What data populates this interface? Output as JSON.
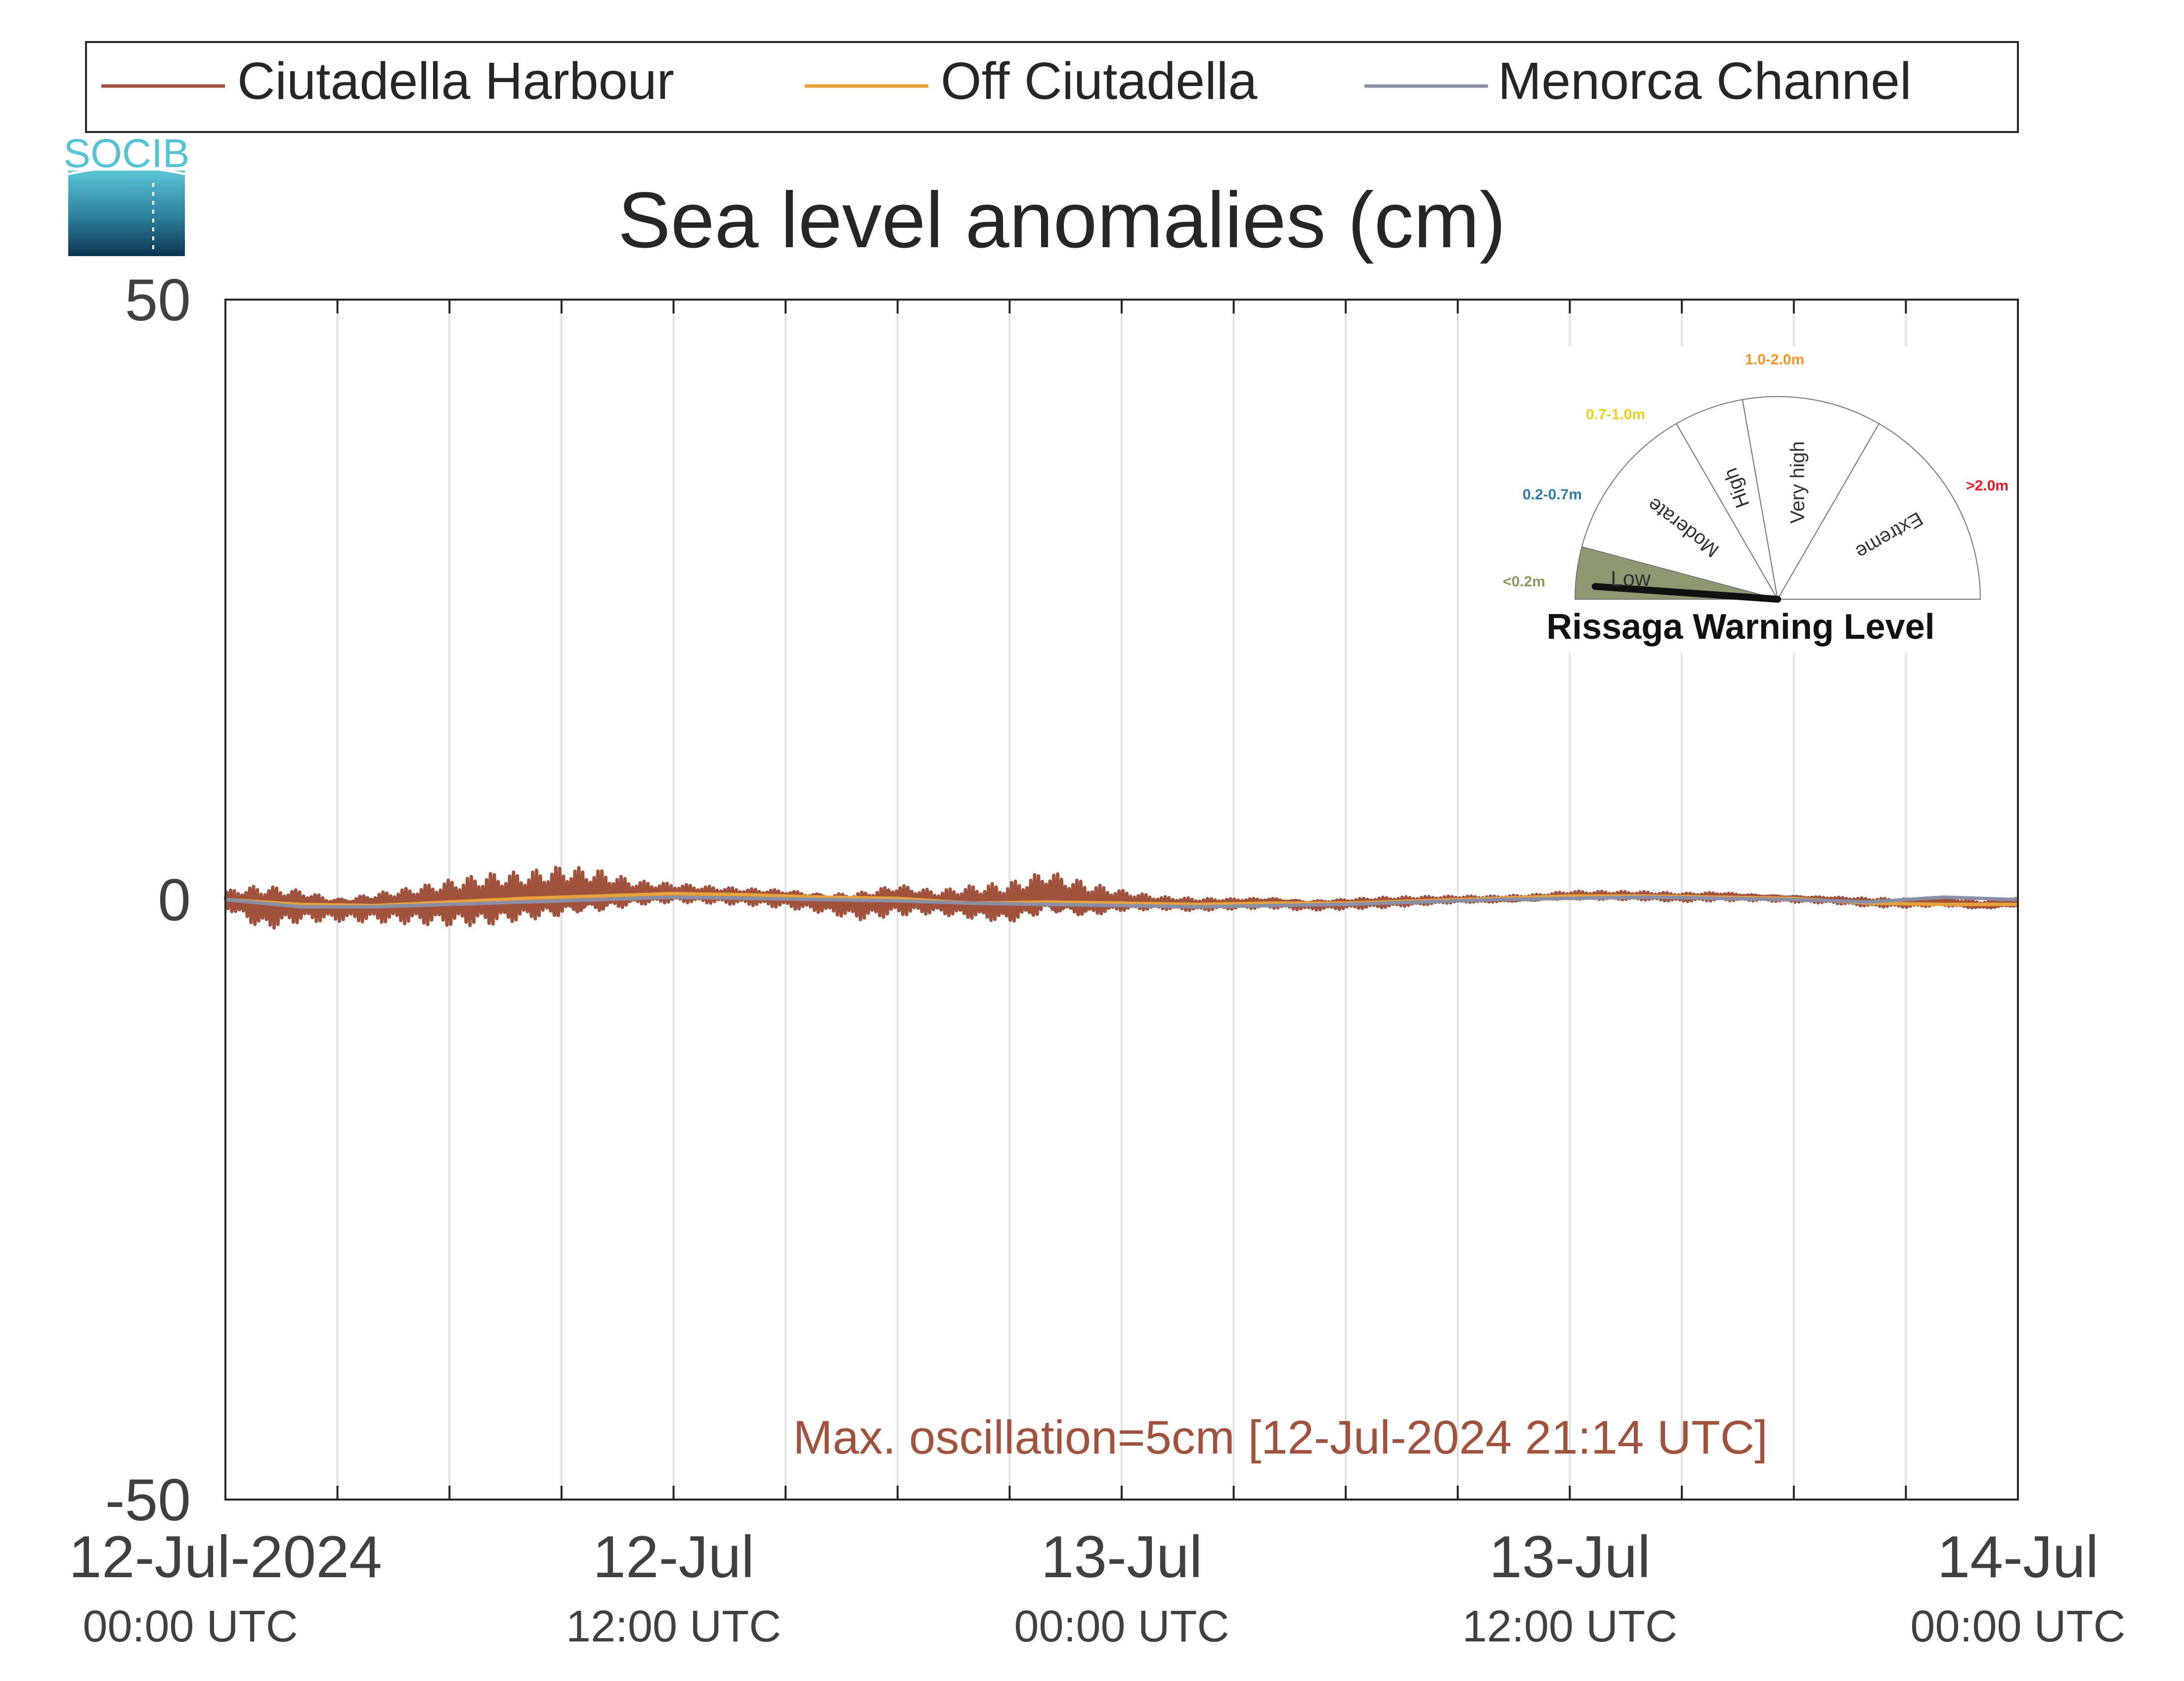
{
  "chart_data": {
    "type": "line",
    "title": "Sea level anomalies (cm)",
    "xlabel": "",
    "ylabel": "",
    "ylim": [
      -50,
      50
    ],
    "yticks": [
      50,
      0,
      -50
    ],
    "ytick_labels": [
      "50",
      "0",
      "-50"
    ],
    "xlim": [
      "2024-07-12 00:00",
      "2024-07-14 00:00"
    ],
    "xticks": [
      {
        "date": "2024-07-12 00:00",
        "line1": "12-Jul-2024",
        "line2": "00:00 UTC"
      },
      {
        "date": "2024-07-12 12:00",
        "line1": "12-Jul",
        "line2": "12:00 UTC"
      },
      {
        "date": "2024-07-13 00:00",
        "line1": "13-Jul",
        "line2": "00:00 UTC"
      },
      {
        "date": "2024-07-13 12:00",
        "line1": "13-Jul",
        "line2": "12:00 UTC"
      },
      {
        "date": "2024-07-14 00:00",
        "line1": "14-Jul",
        "line2": "00:00 UTC"
      }
    ],
    "grid": true,
    "legend_position": "top",
    "series": [
      {
        "name": "Ciutadella Harbour",
        "color": "#a0523d",
        "x": [
          "2024-07-12 00:00",
          "2024-07-12 01:00",
          "2024-07-12 02:00",
          "2024-07-12 03:00",
          "2024-07-12 04:00",
          "2024-07-12 05:00",
          "2024-07-12 06:00",
          "2024-07-12 07:00",
          "2024-07-12 08:00",
          "2024-07-12 09:00",
          "2024-07-12 10:00",
          "2024-07-12 11:00",
          "2024-07-12 12:00",
          "2024-07-12 13:00",
          "2024-07-12 14:00",
          "2024-07-12 15:00",
          "2024-07-12 16:00",
          "2024-07-12 17:00",
          "2024-07-12 18:00",
          "2024-07-12 19:00",
          "2024-07-12 20:00",
          "2024-07-12 21:00",
          "2024-07-12 22:00",
          "2024-07-12 23:00",
          "2024-07-13 00:00",
          "2024-07-13 01:00",
          "2024-07-13 02:00",
          "2024-07-13 03:00",
          "2024-07-13 04:00",
          "2024-07-13 05:00",
          "2024-07-13 06:00",
          "2024-07-13 07:00",
          "2024-07-13 08:00",
          "2024-07-13 09:00",
          "2024-07-13 10:00",
          "2024-07-13 11:00",
          "2024-07-13 12:00",
          "2024-07-13 13:00",
          "2024-07-13 14:00",
          "2024-07-13 15:00",
          "2024-07-13 16:00",
          "2024-07-13 17:00",
          "2024-07-13 18:00",
          "2024-07-13 19:00",
          "2024-07-13 20:00",
          "2024-07-13 21:00",
          "2024-07-13 22:00",
          "2024-07-13 23:00",
          "2024-07-14 00:00"
        ],
        "mean": [
          0,
          -0.5,
          -0.3,
          -0.6,
          -0.4,
          -0.3,
          -0.2,
          -0.1,
          0,
          0.2,
          0.3,
          0.4,
          0.5,
          0.4,
          0.3,
          0.2,
          -0.1,
          -0.3,
          0.1,
          -0.2,
          -0.3,
          -0.5,
          0.2,
          -0.3,
          -0.2,
          -0.3,
          -0.4,
          -0.3,
          -0.2,
          -0.4,
          -0.3,
          -0.2,
          -0.1,
          0,
          0,
          0.1,
          0.3,
          0.3,
          0.3,
          0.2,
          0.3,
          0.2,
          0.1,
          0,
          -0.2,
          -0.3,
          -0.2,
          -0.5,
          -0.3
        ],
        "amplitude": [
          0.8,
          2.2,
          1.6,
          1.2,
          1.5,
          1.8,
          2.2,
          2.5,
          2.4,
          2.6,
          2.2,
          1.2,
          0.9,
          0.8,
          0.8,
          0.9,
          1.0,
          1.4,
          1.5,
          1.1,
          1.6,
          2.0,
          2.2,
          1.8,
          1.0,
          0.6,
          0.6,
          0.5,
          0.5,
          0.5,
          0.5,
          0.5,
          0.4,
          0.3,
          0.3,
          0.3,
          0.4,
          0.4,
          0.4,
          0.4,
          0.4,
          0.3,
          0.3,
          0.3,
          0.4,
          0.4,
          0.4,
          0.4,
          0.4
        ]
      },
      {
        "name": "Off Ciutadella",
        "color": "#e8a23c",
        "x": [
          "2024-07-12 00:00",
          "2024-07-12 02:00",
          "2024-07-12 04:00",
          "2024-07-12 06:00",
          "2024-07-12 08:00",
          "2024-07-12 10:00",
          "2024-07-12 12:00",
          "2024-07-12 14:00",
          "2024-07-12 16:00",
          "2024-07-12 18:00",
          "2024-07-12 20:00",
          "2024-07-12 22:00",
          "2024-07-13 00:00",
          "2024-07-13 02:00",
          "2024-07-13 04:00",
          "2024-07-13 06:00",
          "2024-07-13 08:00",
          "2024-07-13 10:00",
          "2024-07-13 12:00",
          "2024-07-13 14:00",
          "2024-07-13 16:00",
          "2024-07-13 18:00",
          "2024-07-13 20:00",
          "2024-07-13 22:00",
          "2024-07-14 00:00"
        ],
        "values": [
          0,
          -0.4,
          -0.5,
          -0.2,
          0.1,
          0.3,
          0.5,
          0.4,
          0.2,
          0.1,
          -0.3,
          -0.2,
          -0.3,
          -0.4,
          -0.3,
          -0.3,
          -0.1,
          0.1,
          0.3,
          0.3,
          0.2,
          0.1,
          -0.3,
          -0.4,
          -0.4
        ]
      },
      {
        "name": "Menorca Channel",
        "color": "#8a8fa8",
        "x": [
          "2024-07-12 00:00",
          "2024-07-12 02:00",
          "2024-07-12 04:00",
          "2024-07-12 06:00",
          "2024-07-12 08:00",
          "2024-07-12 10:00",
          "2024-07-12 12:00",
          "2024-07-12 14:00",
          "2024-07-12 16:00",
          "2024-07-12 18:00",
          "2024-07-12 20:00",
          "2024-07-12 22:00",
          "2024-07-13 00:00",
          "2024-07-13 02:00",
          "2024-07-13 04:00",
          "2024-07-13 06:00",
          "2024-07-13 08:00",
          "2024-07-13 10:00",
          "2024-07-13 12:00",
          "2024-07-13 14:00",
          "2024-07-13 16:00",
          "2024-07-13 18:00",
          "2024-07-13 20:00",
          "2024-07-13 22:00",
          "2024-07-14 00:00"
        ],
        "values": [
          0,
          -0.6,
          -0.6,
          -0.4,
          -0.2,
          0,
          0.2,
          0.1,
          0,
          -0.1,
          -0.3,
          -0.4,
          -0.5,
          -0.6,
          -0.5,
          -0.4,
          -0.2,
          0,
          0.1,
          0.2,
          0.1,
          0,
          -0.2,
          0.2,
          0
        ]
      }
    ],
    "annotation": {
      "text": "Max. oscillation=5cm [12-Jul-2024 21:14 UTC]",
      "color": "#a0523d"
    }
  },
  "logo": {
    "text": "SOCIB"
  },
  "gauge": {
    "title": "Rissaga Warning Level",
    "current_level": "Low",
    "segments": [
      {
        "label": "Low",
        "range": "<0.2m",
        "range_color": "#8a9a5b",
        "fill": "#8d9870",
        "active": true
      },
      {
        "label": "Moderate",
        "range": "0.2-0.7m",
        "range_color": "#2e7ea8",
        "fill": "#ffffff",
        "active": false
      },
      {
        "label": "High",
        "range": "0.7-1.0m",
        "range_color": "#e6d21a",
        "fill": "#ffffff",
        "active": false
      },
      {
        "label": "Very high",
        "range": "1.0-2.0m",
        "range_color": "#f0962a",
        "fill": "#ffffff",
        "active": false
      },
      {
        "label": "Extreme",
        "range": ">2.0m",
        "range_color": "#e31b23",
        "fill": "#ffffff",
        "active": false
      }
    ]
  }
}
